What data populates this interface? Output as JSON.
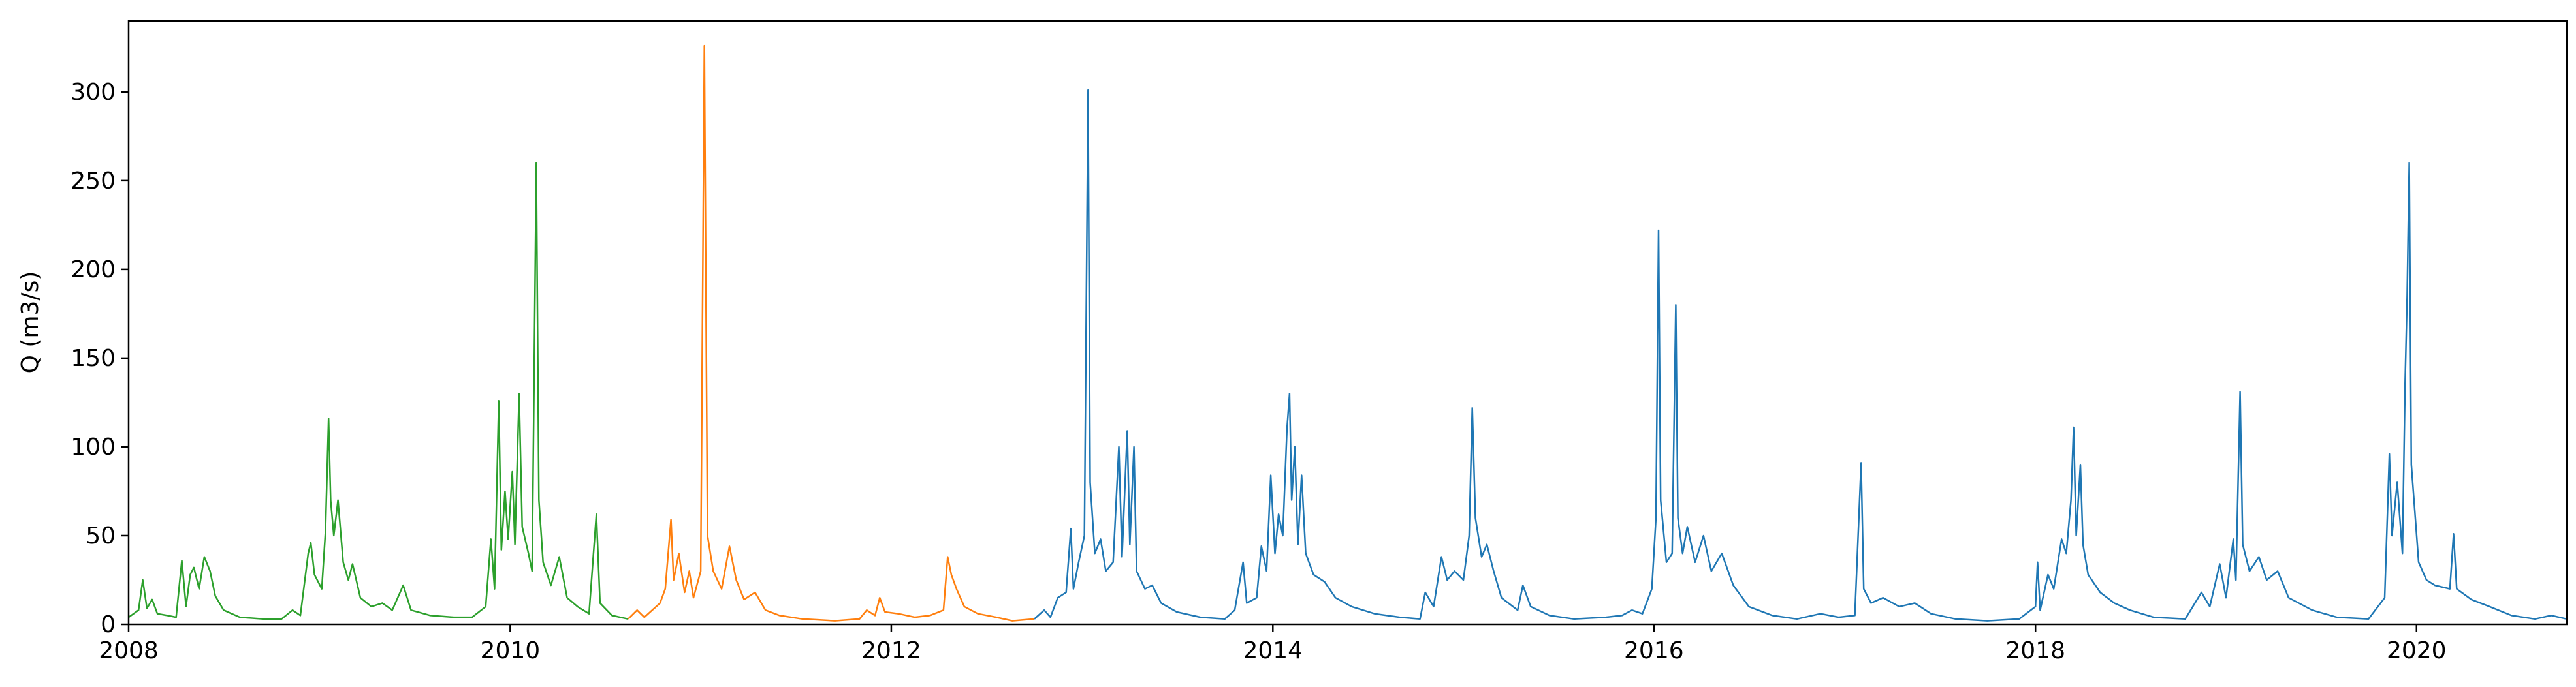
{
  "chart_data": {
    "type": "line",
    "title": "",
    "xlabel": "",
    "ylabel": "Q (m3/s)",
    "xlim": [
      "2008-01-01",
      "2020-10-15"
    ],
    "ylim": [
      0,
      340
    ],
    "grid": false,
    "legend": "none",
    "x_tick_labels": [
      "2008",
      "2010",
      "2012",
      "2014",
      "2016",
      "2018",
      "2020"
    ],
    "y_tick_labels": [
      "0",
      "50",
      "100",
      "150",
      "200",
      "250",
      "300"
    ],
    "y_ticks": [
      0,
      50,
      100,
      150,
      200,
      250,
      300
    ],
    "x_ticks": [
      "2008-01-01",
      "2010-01-01",
      "2012-01-01",
      "2014-01-01",
      "2016-01-01",
      "2018-01-01",
      "2020-01-01"
    ],
    "series": [
      {
        "color": "#2ca02c",
        "points": [
          [
            "2008-01-01",
            4
          ],
          [
            "2008-01-20",
            8
          ],
          [
            "2008-01-28",
            25
          ],
          [
            "2008-02-05",
            9
          ],
          [
            "2008-02-15",
            14
          ],
          [
            "2008-02-25",
            6
          ],
          [
            "2008-03-15",
            5
          ],
          [
            "2008-04-01",
            4
          ],
          [
            "2008-04-12",
            36
          ],
          [
            "2008-04-20",
            10
          ],
          [
            "2008-04-28",
            28
          ],
          [
            "2008-05-05",
            32
          ],
          [
            "2008-05-15",
            20
          ],
          [
            "2008-05-25",
            38
          ],
          [
            "2008-06-05",
            30
          ],
          [
            "2008-06-15",
            16
          ],
          [
            "2008-07-01",
            8
          ],
          [
            "2008-08-01",
            4
          ],
          [
            "2008-09-15",
            3
          ],
          [
            "2008-10-20",
            3
          ],
          [
            "2008-11-10",
            8
          ],
          [
            "2008-11-25",
            5
          ],
          [
            "2008-12-10",
            40
          ],
          [
            "2008-12-15",
            46
          ],
          [
            "2008-12-22",
            28
          ],
          [
            "2009-01-05",
            20
          ],
          [
            "2009-01-12",
            52
          ],
          [
            "2009-01-18",
            116
          ],
          [
            "2009-01-22",
            70
          ],
          [
            "2009-01-28",
            50
          ],
          [
            "2009-02-05",
            70
          ],
          [
            "2009-02-15",
            35
          ],
          [
            "2009-02-25",
            25
          ],
          [
            "2009-03-05",
            34
          ],
          [
            "2009-03-20",
            15
          ],
          [
            "2009-04-10",
            10
          ],
          [
            "2009-05-01",
            12
          ],
          [
            "2009-05-20",
            8
          ],
          [
            "2009-06-10",
            22
          ],
          [
            "2009-06-25",
            8
          ],
          [
            "2009-08-01",
            5
          ],
          [
            "2009-09-15",
            4
          ],
          [
            "2009-10-20",
            4
          ],
          [
            "2009-11-15",
            10
          ],
          [
            "2009-11-25",
            48
          ],
          [
            "2009-12-02",
            20
          ],
          [
            "2009-12-10",
            126
          ],
          [
            "2009-12-15",
            42
          ],
          [
            "2009-12-22",
            75
          ],
          [
            "2009-12-28",
            48
          ],
          [
            "2010-01-05",
            86
          ],
          [
            "2010-01-10",
            45
          ],
          [
            "2010-01-18",
            130
          ],
          [
            "2010-01-24",
            55
          ],
          [
            "2010-02-05",
            40
          ],
          [
            "2010-02-12",
            30
          ],
          [
            "2010-02-20",
            260
          ],
          [
            "2010-02-25",
            70
          ],
          [
            "2010-03-05",
            35
          ],
          [
            "2010-03-20",
            22
          ],
          [
            "2010-04-05",
            38
          ],
          [
            "2010-04-20",
            15
          ],
          [
            "2010-05-10",
            10
          ],
          [
            "2010-06-01",
            6
          ],
          [
            "2010-06-15",
            62
          ],
          [
            "2010-06-22",
            12
          ],
          [
            "2010-07-15",
            5
          ],
          [
            "2010-08-15",
            3
          ]
        ]
      },
      {
        "color": "#ff7f0e",
        "points": [
          [
            "2010-08-15",
            3
          ],
          [
            "2010-09-01",
            8
          ],
          [
            "2010-09-15",
            4
          ],
          [
            "2010-10-15",
            12
          ],
          [
            "2010-10-25",
            20
          ],
          [
            "2010-11-05",
            59
          ],
          [
            "2010-11-10",
            25
          ],
          [
            "2010-11-20",
            40
          ],
          [
            "2010-12-01",
            18
          ],
          [
            "2010-12-10",
            30
          ],
          [
            "2010-12-18",
            15
          ],
          [
            "2011-01-01",
            30
          ],
          [
            "2011-01-08",
            326
          ],
          [
            "2011-01-14",
            50
          ],
          [
            "2011-01-25",
            30
          ],
          [
            "2011-02-10",
            20
          ],
          [
            "2011-02-25",
            44
          ],
          [
            "2011-03-10",
            25
          ],
          [
            "2011-03-25",
            14
          ],
          [
            "2011-04-15",
            18
          ],
          [
            "2011-05-05",
            8
          ],
          [
            "2011-06-01",
            5
          ],
          [
            "2011-07-15",
            3
          ],
          [
            "2011-09-15",
            2
          ],
          [
            "2011-11-01",
            3
          ],
          [
            "2011-11-15",
            8
          ],
          [
            "2011-12-01",
            5
          ],
          [
            "2011-12-10",
            15
          ],
          [
            "2011-12-20",
            7
          ],
          [
            "2012-01-15",
            6
          ],
          [
            "2012-02-15",
            4
          ],
          [
            "2012-03-15",
            5
          ],
          [
            "2012-04-10",
            8
          ],
          [
            "2012-04-18",
            38
          ],
          [
            "2012-04-25",
            28
          ],
          [
            "2012-05-05",
            20
          ],
          [
            "2012-05-20",
            10
          ],
          [
            "2012-06-15",
            6
          ],
          [
            "2012-07-20",
            4
          ],
          [
            "2012-08-20",
            2
          ],
          [
            "2012-10-01",
            3
          ]
        ]
      },
      {
        "color": "#1f77b4",
        "points": [
          [
            "2012-10-01",
            3
          ],
          [
            "2012-10-20",
            8
          ],
          [
            "2012-11-01",
            4
          ],
          [
            "2012-11-15",
            15
          ],
          [
            "2012-12-01",
            18
          ],
          [
            "2012-12-10",
            54
          ],
          [
            "2012-12-15",
            20
          ],
          [
            "2012-12-25",
            35
          ],
          [
            "2013-01-05",
            50
          ],
          [
            "2013-01-12",
            301
          ],
          [
            "2013-01-16",
            80
          ],
          [
            "2013-01-25",
            40
          ],
          [
            "2013-02-05",
            48
          ],
          [
            "2013-02-15",
            30
          ],
          [
            "2013-03-01",
            35
          ],
          [
            "2013-03-12",
            100
          ],
          [
            "2013-03-18",
            38
          ],
          [
            "2013-03-28",
            109
          ],
          [
            "2013-04-02",
            45
          ],
          [
            "2013-04-10",
            100
          ],
          [
            "2013-04-15",
            30
          ],
          [
            "2013-05-01",
            20
          ],
          [
            "2013-05-15",
            22
          ],
          [
            "2013-06-01",
            12
          ],
          [
            "2013-07-01",
            7
          ],
          [
            "2013-08-15",
            4
          ],
          [
            "2013-10-01",
            3
          ],
          [
            "2013-10-20",
            8
          ],
          [
            "2013-11-05",
            35
          ],
          [
            "2013-11-12",
            12
          ],
          [
            "2013-12-01",
            15
          ],
          [
            "2013-12-10",
            44
          ],
          [
            "2013-12-20",
            30
          ],
          [
            "2013-12-28",
            84
          ],
          [
            "2014-01-05",
            40
          ],
          [
            "2014-01-12",
            62
          ],
          [
            "2014-01-20",
            50
          ],
          [
            "2014-01-28",
            110
          ],
          [
            "2014-02-02",
            130
          ],
          [
            "2014-02-06",
            70
          ],
          [
            "2014-02-12",
            100
          ],
          [
            "2014-02-18",
            45
          ],
          [
            "2014-02-25",
            84
          ],
          [
            "2014-03-05",
            40
          ],
          [
            "2014-03-20",
            28
          ],
          [
            "2014-04-10",
            24
          ],
          [
            "2014-05-01",
            15
          ],
          [
            "2014-06-01",
            10
          ],
          [
            "2014-07-15",
            6
          ],
          [
            "2014-09-01",
            4
          ],
          [
            "2014-10-10",
            3
          ],
          [
            "2014-10-20",
            18
          ],
          [
            "2014-11-05",
            10
          ],
          [
            "2014-11-20",
            38
          ],
          [
            "2014-12-01",
            25
          ],
          [
            "2014-12-15",
            30
          ],
          [
            "2015-01-01",
            25
          ],
          [
            "2015-01-12",
            50
          ],
          [
            "2015-01-18",
            122
          ],
          [
            "2015-01-24",
            60
          ],
          [
            "2015-02-05",
            38
          ],
          [
            "2015-02-15",
            45
          ],
          [
            "2015-02-28",
            30
          ],
          [
            "2015-03-15",
            15
          ],
          [
            "2015-04-15",
            8
          ],
          [
            "2015-04-25",
            22
          ],
          [
            "2015-05-10",
            10
          ],
          [
            "2015-06-15",
            5
          ],
          [
            "2015-08-01",
            3
          ],
          [
            "2015-10-01",
            4
          ],
          [
            "2015-11-01",
            5
          ],
          [
            "2015-11-20",
            8
          ],
          [
            "2015-12-10",
            6
          ],
          [
            "2015-12-28",
            20
          ],
          [
            "2016-01-05",
            60
          ],
          [
            "2016-01-10",
            222
          ],
          [
            "2016-01-14",
            70
          ],
          [
            "2016-01-25",
            35
          ],
          [
            "2016-02-05",
            40
          ],
          [
            "2016-02-12",
            180
          ],
          [
            "2016-02-16",
            60
          ],
          [
            "2016-02-25",
            40
          ],
          [
            "2016-03-05",
            55
          ],
          [
            "2016-03-20",
            35
          ],
          [
            "2016-04-05",
            50
          ],
          [
            "2016-04-20",
            30
          ],
          [
            "2016-05-10",
            40
          ],
          [
            "2016-06-01",
            22
          ],
          [
            "2016-07-01",
            10
          ],
          [
            "2016-08-15",
            5
          ],
          [
            "2016-10-01",
            3
          ],
          [
            "2016-11-15",
            6
          ],
          [
            "2016-12-20",
            4
          ],
          [
            "2017-01-20",
            5
          ],
          [
            "2017-02-01",
            91
          ],
          [
            "2017-02-06",
            20
          ],
          [
            "2017-02-20",
            12
          ],
          [
            "2017-03-15",
            15
          ],
          [
            "2017-04-15",
            10
          ],
          [
            "2017-05-15",
            12
          ],
          [
            "2017-06-15",
            6
          ],
          [
            "2017-08-01",
            3
          ],
          [
            "2017-10-01",
            2
          ],
          [
            "2017-12-01",
            3
          ],
          [
            "2018-01-01",
            10
          ],
          [
            "2018-01-05",
            35
          ],
          [
            "2018-01-10",
            8
          ],
          [
            "2018-01-25",
            28
          ],
          [
            "2018-02-05",
            20
          ],
          [
            "2018-02-20",
            48
          ],
          [
            "2018-03-01",
            40
          ],
          [
            "2018-03-10",
            70
          ],
          [
            "2018-03-15",
            111
          ],
          [
            "2018-03-20",
            50
          ],
          [
            "2018-03-28",
            90
          ],
          [
            "2018-04-02",
            45
          ],
          [
            "2018-04-12",
            28
          ],
          [
            "2018-05-05",
            18
          ],
          [
            "2018-06-01",
            12
          ],
          [
            "2018-07-01",
            8
          ],
          [
            "2018-08-15",
            4
          ],
          [
            "2018-10-15",
            3
          ],
          [
            "2018-11-15",
            18
          ],
          [
            "2018-12-01",
            10
          ],
          [
            "2018-12-20",
            34
          ],
          [
            "2019-01-01",
            15
          ],
          [
            "2019-01-15",
            48
          ],
          [
            "2019-01-20",
            25
          ],
          [
            "2019-01-28",
            131
          ],
          [
            "2019-02-02",
            45
          ],
          [
            "2019-02-15",
            30
          ],
          [
            "2019-03-05",
            38
          ],
          [
            "2019-03-20",
            25
          ],
          [
            "2019-04-10",
            30
          ],
          [
            "2019-05-01",
            15
          ],
          [
            "2019-06-15",
            8
          ],
          [
            "2019-08-01",
            4
          ],
          [
            "2019-10-01",
            3
          ],
          [
            "2019-11-01",
            15
          ],
          [
            "2019-11-10",
            96
          ],
          [
            "2019-11-15",
            50
          ],
          [
            "2019-11-25",
            80
          ],
          [
            "2019-12-05",
            40
          ],
          [
            "2019-12-10",
            135
          ],
          [
            "2019-12-14",
            185
          ],
          [
            "2019-12-18",
            260
          ],
          [
            "2019-12-22",
            90
          ],
          [
            "2020-01-05",
            35
          ],
          [
            "2020-01-20",
            25
          ],
          [
            "2020-02-05",
            22
          ],
          [
            "2020-03-05",
            20
          ],
          [
            "2020-03-12",
            51
          ],
          [
            "2020-03-18",
            20
          ],
          [
            "2020-04-15",
            14
          ],
          [
            "2020-05-20",
            10
          ],
          [
            "2020-07-01",
            5
          ],
          [
            "2020-08-15",
            3
          ],
          [
            "2020-09-15",
            5
          ],
          [
            "2020-10-15",
            3
          ]
        ]
      }
    ]
  }
}
